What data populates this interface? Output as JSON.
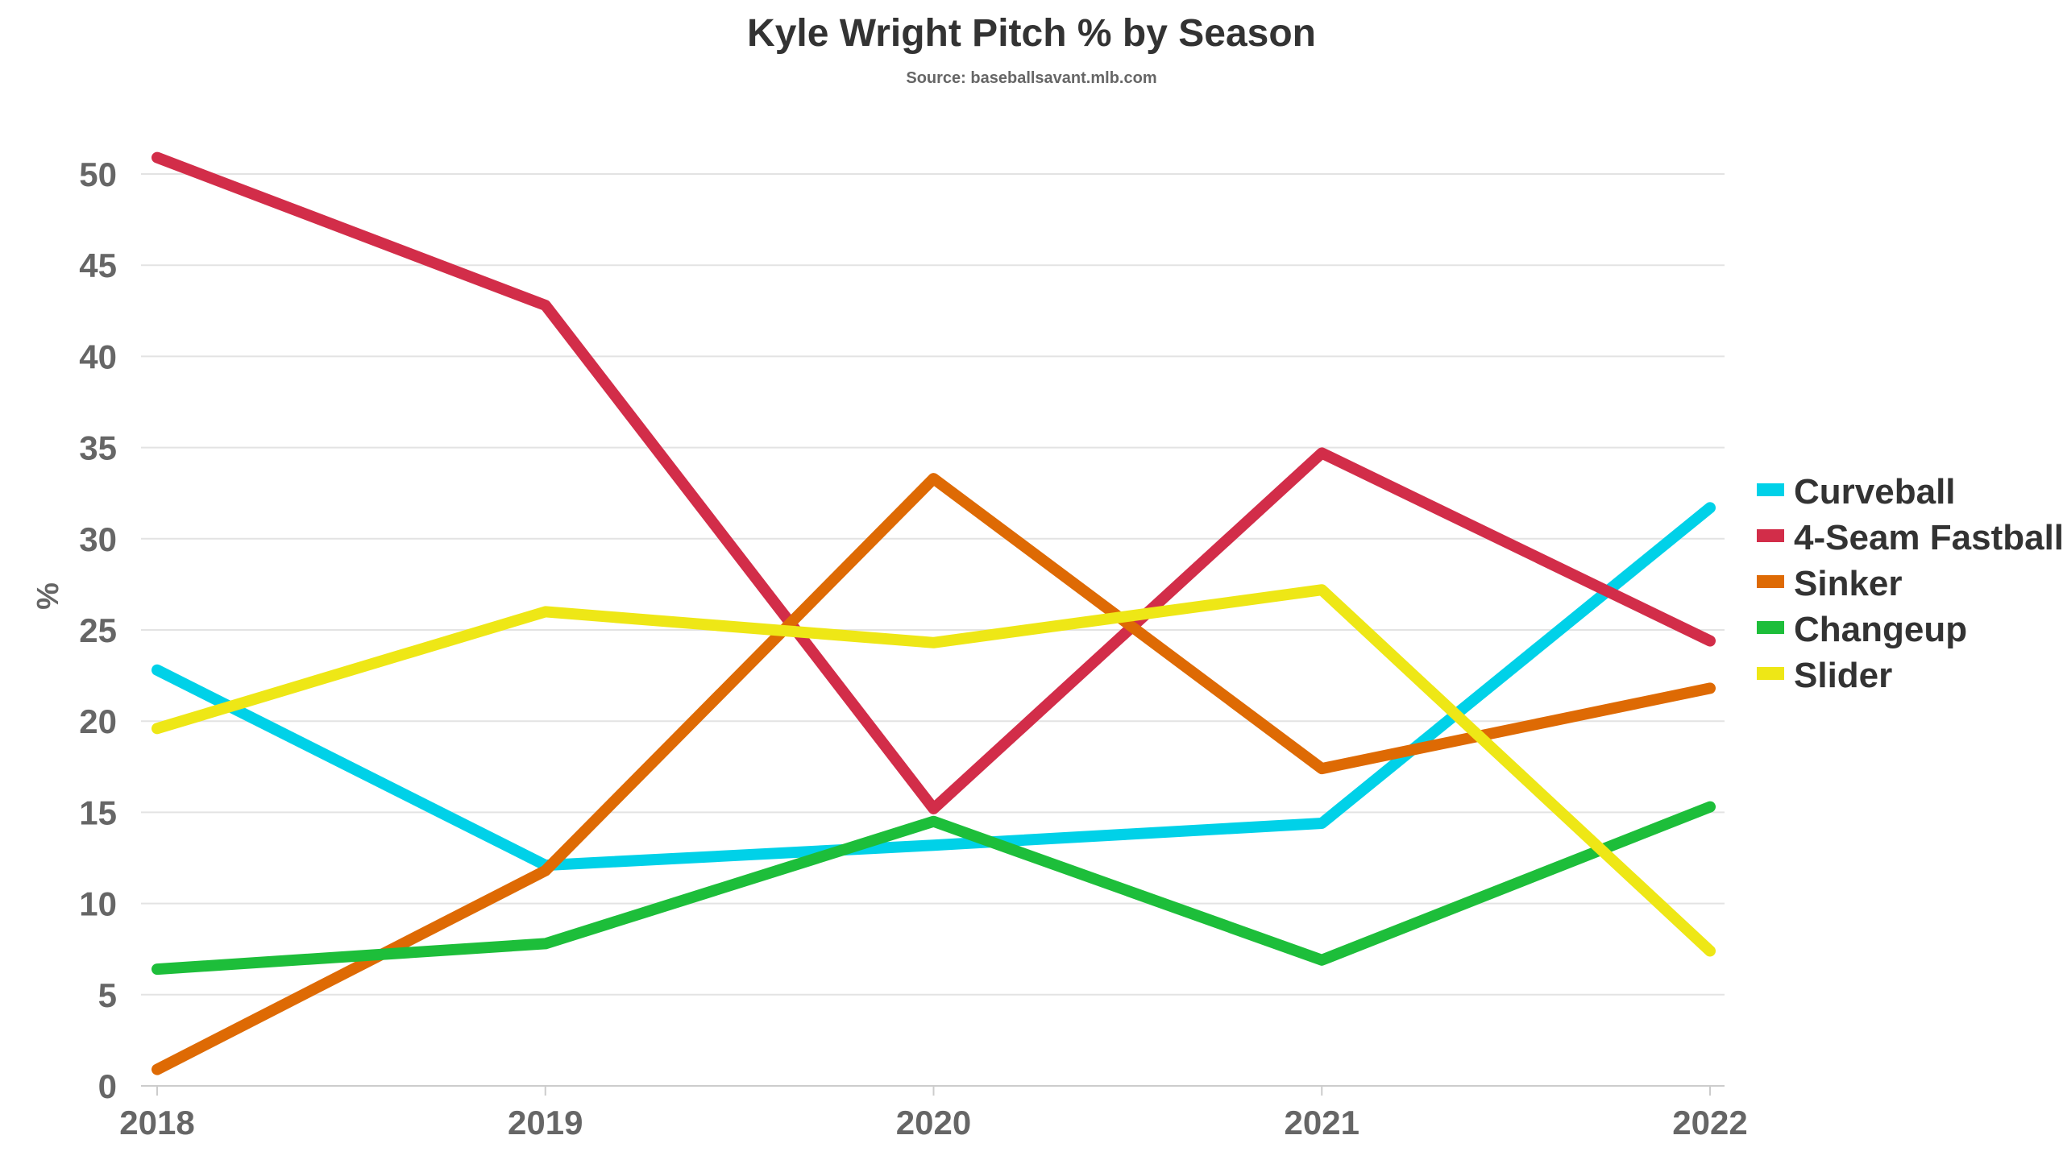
{
  "chart_data": {
    "type": "line",
    "title": "Kyle Wright Pitch % by Season",
    "subtitle": "Source: baseballsavant.mlb.com",
    "xlabel": "",
    "ylabel": "%",
    "x": [
      "2018",
      "2019",
      "2020",
      "2021",
      "2022"
    ],
    "ylim": [
      0,
      52
    ],
    "yticks": [
      0,
      5,
      10,
      15,
      20,
      25,
      30,
      35,
      40,
      45,
      50
    ],
    "grid": true,
    "legend_position": "right",
    "series": [
      {
        "name": "Curveball",
        "color": "#00D1E8",
        "values": [
          22.8,
          12.1,
          13.2,
          14.4,
          31.7
        ]
      },
      {
        "name": "4-Seam Fastball",
        "color": "#D22D49",
        "values": [
          50.9,
          42.8,
          15.2,
          34.7,
          24.4
        ]
      },
      {
        "name": "Sinker",
        "color": "#DE6A04",
        "values": [
          0.9,
          11.8,
          33.3,
          17.4,
          21.8
        ]
      },
      {
        "name": "Changeup",
        "color": "#1DBE3A",
        "values": [
          6.4,
          7.8,
          14.5,
          6.9,
          15.3
        ]
      },
      {
        "name": "Slider",
        "color": "#EEE716",
        "values": [
          19.6,
          26.0,
          24.3,
          27.2,
          7.4
        ]
      }
    ]
  }
}
